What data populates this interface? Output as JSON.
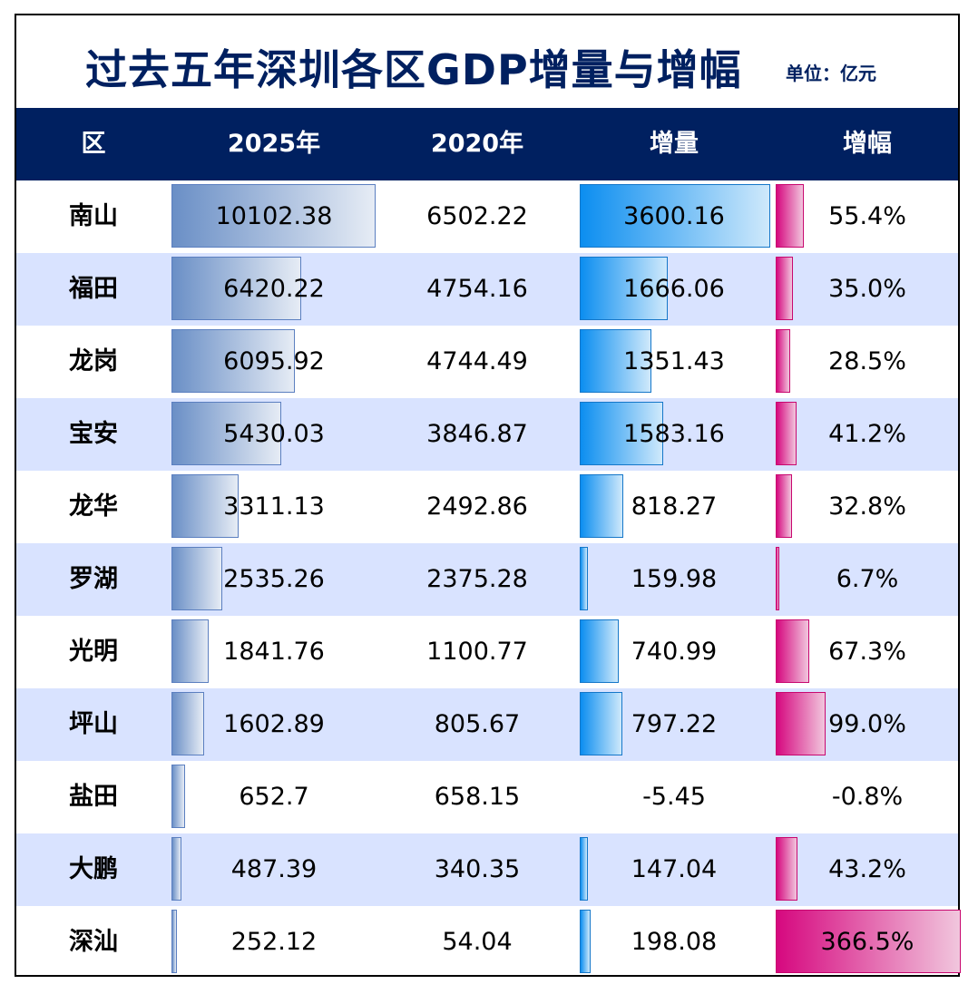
{
  "title": "过去五年深圳各区GDP增量与增幅",
  "unit": "单位：亿元",
  "headers": {
    "district": "区",
    "gdp2025": "2025年",
    "gdp2020": "2020年",
    "increase": "增量",
    "growth": "增幅"
  },
  "colors": {
    "title": "#002060",
    "header_bg": "#002060",
    "row_alt": "#d9e3ff",
    "gdp_bar": "#6a8fc6",
    "increase_bar": "#0c8ef0",
    "growth_bar": "#d6087f"
  },
  "chart_data": {
    "type": "table",
    "columns": [
      "区",
      "2025年",
      "2020年",
      "增量",
      "增幅"
    ],
    "rows": [
      {
        "district": "南山",
        "gdp2025": "10102.38",
        "gdp2020": "6502.22",
        "increase": "3600.16",
        "growth": "55.4%",
        "gdp2025_value": 10102.38,
        "increase_value": 3600.16,
        "growth_value": 55.4
      },
      {
        "district": "福田",
        "gdp2025": "6420.22",
        "gdp2020": "4754.16",
        "increase": "1666.06",
        "growth": "35.0%",
        "gdp2025_value": 6420.22,
        "increase_value": 1666.06,
        "growth_value": 35.0
      },
      {
        "district": "龙岗",
        "gdp2025": "6095.92",
        "gdp2020": "4744.49",
        "increase": "1351.43",
        "growth": "28.5%",
        "gdp2025_value": 6095.92,
        "increase_value": 1351.43,
        "growth_value": 28.5
      },
      {
        "district": "宝安",
        "gdp2025": "5430.03",
        "gdp2020": "3846.87",
        "increase": "1583.16",
        "growth": "41.2%",
        "gdp2025_value": 5430.03,
        "increase_value": 1583.16,
        "growth_value": 41.2
      },
      {
        "district": "龙华",
        "gdp2025": "3311.13",
        "gdp2020": "2492.86",
        "increase": "818.27",
        "growth": "32.8%",
        "gdp2025_value": 3311.13,
        "increase_value": 818.27,
        "growth_value": 32.8
      },
      {
        "district": "罗湖",
        "gdp2025": "2535.26",
        "gdp2020": "2375.28",
        "increase": "159.98",
        "growth": "6.7%",
        "gdp2025_value": 2535.26,
        "increase_value": 159.98,
        "growth_value": 6.7
      },
      {
        "district": "光明",
        "gdp2025": "1841.76",
        "gdp2020": "1100.77",
        "increase": "740.99",
        "growth": "67.3%",
        "gdp2025_value": 1841.76,
        "increase_value": 740.99,
        "growth_value": 67.3
      },
      {
        "district": "坪山",
        "gdp2025": "1602.89",
        "gdp2020": "805.67",
        "increase": "797.22",
        "growth": "99.0%",
        "gdp2025_value": 1602.89,
        "increase_value": 797.22,
        "growth_value": 99.0
      },
      {
        "district": "盐田",
        "gdp2025": "652.7",
        "gdp2020": "658.15",
        "increase": "-5.45",
        "growth": "-0.8%",
        "gdp2025_value": 652.7,
        "increase_value": -5.45,
        "growth_value": -0.8
      },
      {
        "district": "大鹏",
        "gdp2025": "487.39",
        "gdp2020": "340.35",
        "increase": "147.04",
        "growth": "43.2%",
        "gdp2025_value": 487.39,
        "increase_value": 147.04,
        "growth_value": 43.2
      },
      {
        "district": "深汕",
        "gdp2025": "252.12",
        "gdp2020": "54.04",
        "increase": "198.08",
        "growth": "366.5%",
        "gdp2025_value": 252.12,
        "increase_value": 198.08,
        "growth_value": 366.5
      }
    ]
  }
}
